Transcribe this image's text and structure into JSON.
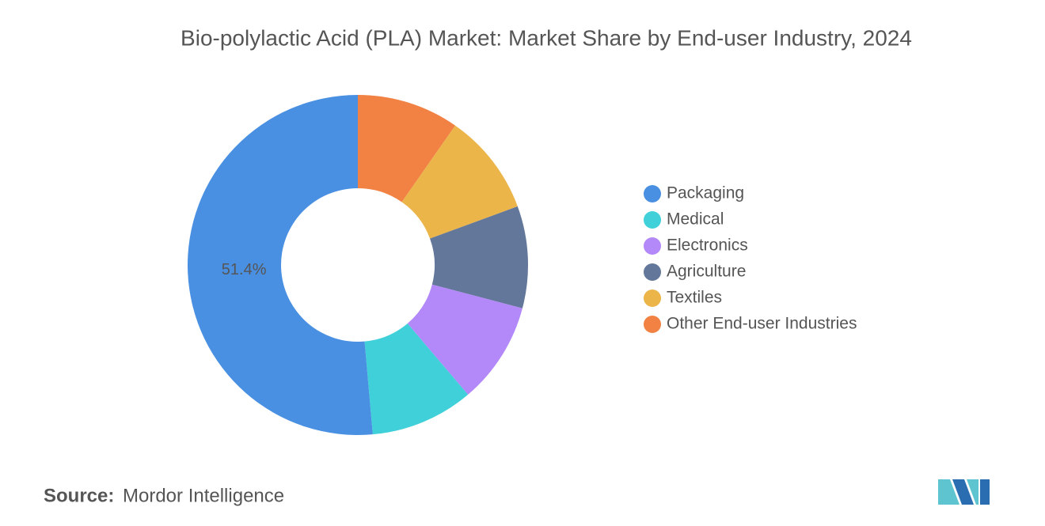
{
  "chart_data": {
    "type": "donut",
    "title": "Bio-polylactic Acid (PLA) Market: Market Share by End-user Industry, 2024",
    "categories": [
      "Packaging",
      "Medical",
      "Electronics",
      "Agriculture",
      "Textiles",
      "Other End-user Industries"
    ],
    "values": [
      51.4,
      9.8,
      9.7,
      9.7,
      9.7,
      9.7
    ],
    "value_labels": [
      "51.4%",
      null,
      null,
      null,
      null,
      null
    ],
    "colors": [
      "#4a90e2",
      "#3fd0d9",
      "#b388f9",
      "#63779a",
      "#ebb54a",
      "#f18244"
    ],
    "legend": "right"
  },
  "footer": {
    "source_label": "Source:",
    "source": "Mordor Intelligence"
  }
}
